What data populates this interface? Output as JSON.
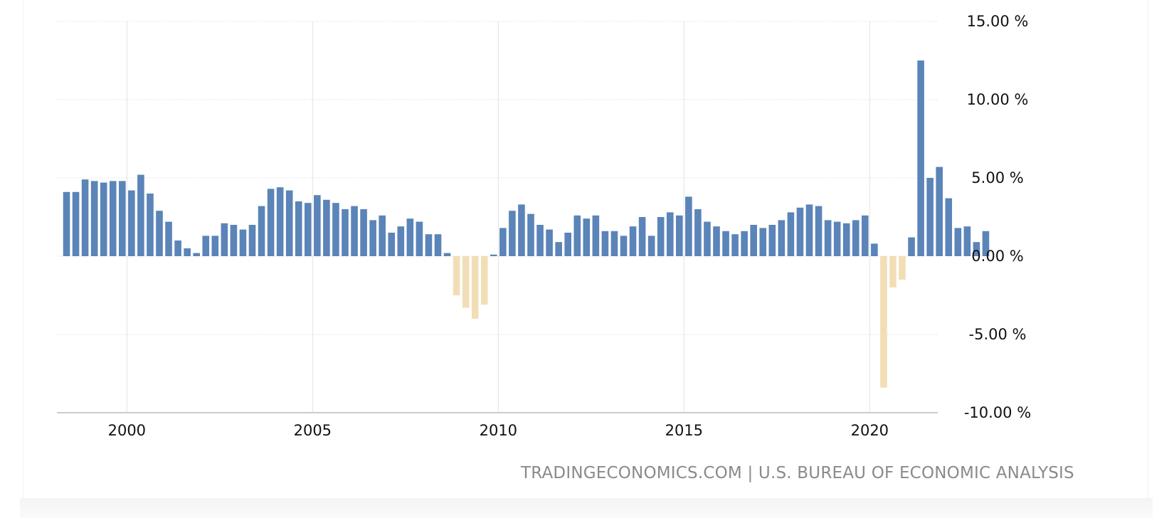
{
  "source": "TRADINGECONOMICS.COM | U.S. BUREAU OF ECONOMIC ANALYSIS",
  "chart_data": {
    "type": "bar",
    "title": "",
    "xlabel": "",
    "ylabel": "",
    "ylim": [
      -10,
      15
    ],
    "y_tick_labels": [
      "15.00 %",
      "10.00 %",
      "5.00 %",
      "0.00 %",
      "-5.00 %",
      "-10.00 %"
    ],
    "y_ticks": [
      15,
      10,
      5,
      0,
      -5,
      -10
    ],
    "x_tick_labels": [
      "2000",
      "2005",
      "2010",
      "2015",
      "2020"
    ],
    "x_ticks": [
      2000,
      2005,
      2010,
      2015,
      2020
    ],
    "grid": true,
    "positive_color": "#5b84b8",
    "negative_color": "#f2deb6",
    "frequency": "quarterly",
    "start": "1998-Q2",
    "series": [
      {
        "values": [
          4.1,
          4.1,
          4.9,
          4.8,
          4.7,
          4.8,
          4.8,
          4.2,
          5.2,
          4.0,
          2.9,
          2.2,
          1.0,
          0.5,
          0.2,
          1.3,
          1.3,
          2.1,
          2.0,
          1.7,
          2.0,
          3.2,
          4.3,
          4.4,
          4.2,
          3.5,
          3.4,
          3.9,
          3.6,
          3.4,
          3.0,
          3.2,
          3.0,
          2.3,
          2.6,
          1.5,
          1.9,
          2.4,
          2.2,
          1.4,
          1.4,
          0.2,
          -2.5,
          -3.3,
          -4.0,
          -3.1,
          0.1,
          1.8,
          2.9,
          3.3,
          2.7,
          2.0,
          1.7,
          0.9,
          1.5,
          2.6,
          2.4,
          2.6,
          1.6,
          1.6,
          1.3,
          1.9,
          2.5,
          1.3,
          2.5,
          2.8,
          2.6,
          3.8,
          3.0,
          2.2,
          1.9,
          1.6,
          1.4,
          1.6,
          2.0,
          1.8,
          2.0,
          2.3,
          2.8,
          3.1,
          3.3,
          3.2,
          2.3,
          2.2,
          2.1,
          2.3,
          2.6,
          0.8,
          -8.4,
          -2.0,
          -1.5,
          1.2,
          12.5,
          5.0,
          5.7,
          3.7,
          1.8,
          1.9,
          0.9,
          1.6
        ]
      }
    ]
  }
}
